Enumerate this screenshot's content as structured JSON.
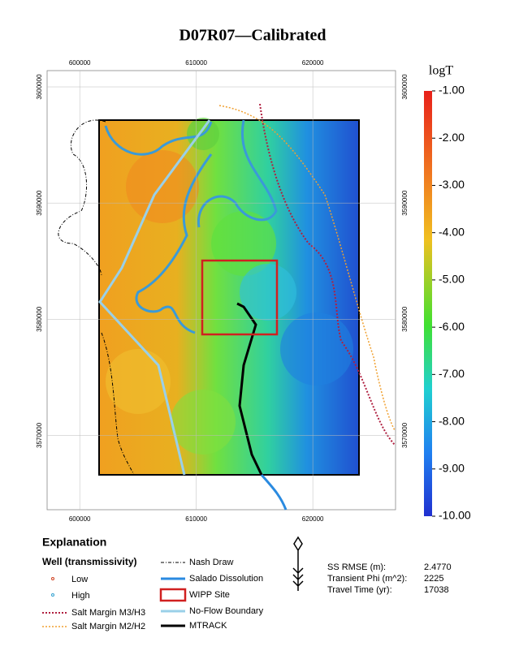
{
  "title": "D07R07—Calibrated",
  "map": {
    "xlim": [
      597200,
      627100
    ],
    "ylim": [
      3563600,
      3601400
    ],
    "xticks": [
      600000,
      610000,
      620000
    ],
    "yticks": [
      3570000,
      3580000,
      3590000,
      3600000
    ]
  },
  "colorbar": {
    "label": "logT",
    "lim": [
      -10,
      -1
    ],
    "ticks": [
      {
        "value": -1,
        "label": "-1.00"
      },
      {
        "value": -2,
        "label": "-2.00"
      },
      {
        "value": -3,
        "label": "-3.00"
      },
      {
        "value": -4,
        "label": "-4.00"
      },
      {
        "value": -5,
        "label": "-5.00"
      },
      {
        "value": -6,
        "label": "-6.00"
      },
      {
        "value": -7,
        "label": "-7.00"
      },
      {
        "value": -8,
        "label": "-8.00"
      },
      {
        "value": -9,
        "label": "-9.00"
      },
      {
        "value": -10,
        "label": "-10.00"
      }
    ]
  },
  "legend": {
    "heading": "Explanation",
    "subheading": "Well (transmissivity)",
    "items": [
      "Low",
      "High",
      "Salt Margin M3/H3",
      "Salt Margin M2/H2",
      "Nash Draw",
      "Salado Dissolution",
      "WIPP Site",
      "No-Flow Boundary",
      "MTRACK"
    ]
  },
  "stats": {
    "rows": [
      [
        "SS RMSE (m):",
        "2.4770"
      ],
      [
        "Transient Phi (m^2):",
        "2225"
      ],
      [
        "Travel Time (yr):",
        "17038"
      ]
    ]
  }
}
